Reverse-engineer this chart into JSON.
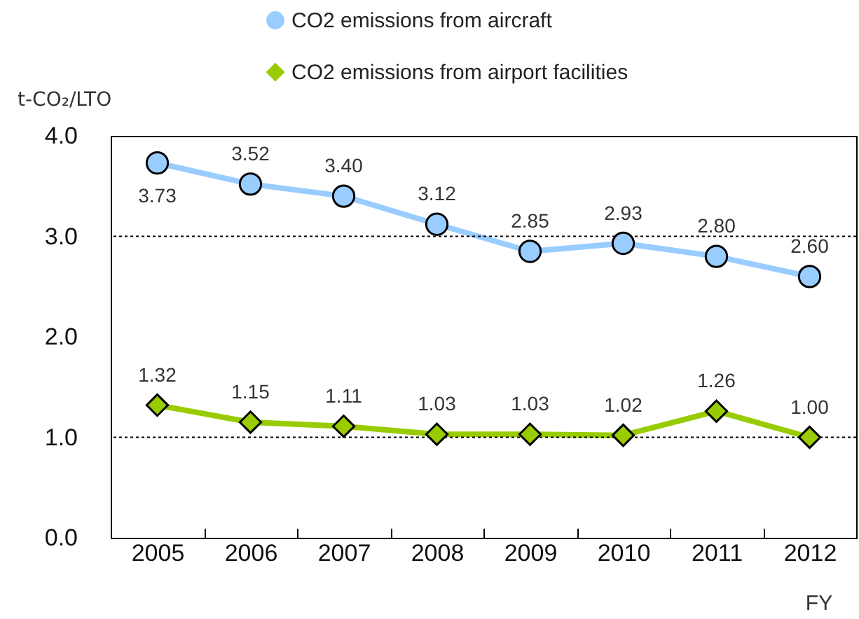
{
  "chart_data": {
    "type": "line",
    "ylabel": "t-CO₂/LTO",
    "xlabel": "FY",
    "legend": "top",
    "line_style": "solid",
    "categories": [
      "2005",
      "2006",
      "2007",
      "2008",
      "2009",
      "2010",
      "2011",
      "2012"
    ],
    "series": [
      {
        "name": "CO2 emissions from aircraft",
        "color": "#99ccff",
        "marker": "circle",
        "values": [
          3.73,
          3.52,
          3.4,
          3.12,
          2.85,
          2.93,
          2.8,
          2.6
        ],
        "value_labels": [
          "3.73",
          "3.52",
          "3.40",
          "3.12",
          "2.85",
          "2.93",
          "2.80",
          "2.60"
        ]
      },
      {
        "name": "CO2 emissions from airport facilities",
        "color": "#99cc00",
        "marker": "diamond",
        "values": [
          1.32,
          1.15,
          1.11,
          1.03,
          1.03,
          1.02,
          1.26,
          1.0
        ],
        "value_labels": [
          "1.32",
          "1.15",
          "1.11",
          "1.03",
          "1.03",
          "1.02",
          "1.26",
          "1.00"
        ]
      }
    ],
    "ylim": [
      0,
      4
    ],
    "yticks": [
      {
        "value": 0,
        "label": "0.0"
      },
      {
        "value": 1,
        "label": "1.0"
      },
      {
        "value": 2,
        "label": "2.0"
      },
      {
        "value": 3,
        "label": "3.0"
      },
      {
        "value": 4,
        "label": "4.0"
      }
    ],
    "ref_lines": [
      {
        "axis": "y",
        "value": 1,
        "color": "#000000",
        "line_style": "dotted"
      },
      {
        "axis": "y",
        "value": 3,
        "color": "#000000",
        "line_style": "dotted"
      }
    ]
  }
}
